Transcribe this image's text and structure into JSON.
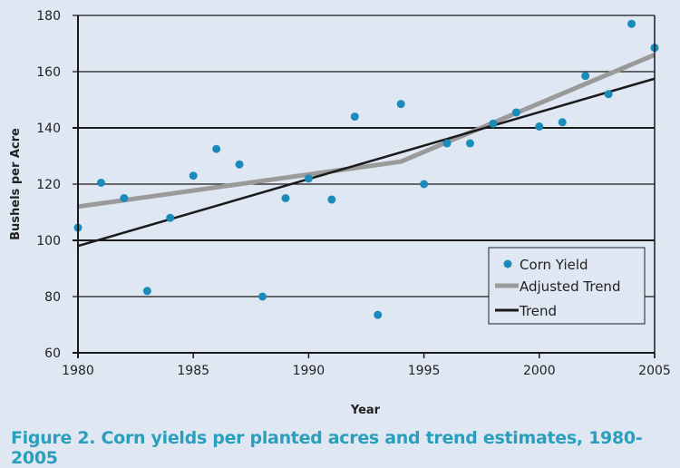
{
  "chart_data": {
    "type": "scatter",
    "title": "Figure 2. Corn yields per planted acres and trend estimates, 1980-2005",
    "xlabel": "Year",
    "ylabel": "Bushels per Acre",
    "xlim": [
      1980,
      2005
    ],
    "ylim": [
      60,
      180
    ],
    "xticks": [
      1980,
      1985,
      1990,
      1995,
      2000,
      2005
    ],
    "yticks": [
      60,
      80,
      100,
      120,
      140,
      160,
      180
    ],
    "grid": true,
    "legend_position": "bottom-right",
    "series": [
      {
        "name": "Corn Yield",
        "kind": "scatter",
        "color": "#1b8cb9",
        "x": [
          1980,
          1981,
          1982,
          1983,
          1984,
          1985,
          1986,
          1987,
          1988,
          1989,
          1990,
          1991,
          1992,
          1993,
          1994,
          1995,
          1996,
          1997,
          1998,
          1999,
          2000,
          2001,
          2002,
          2003,
          2004,
          2005
        ],
        "y": [
          104.5,
          120.5,
          115,
          82,
          108,
          123,
          132.5,
          127,
          80,
          115,
          122,
          114.5,
          144,
          73.5,
          148.5,
          120,
          134.5,
          134.5,
          141.5,
          145.5,
          140.5,
          142,
          158.5,
          152,
          177,
          168.5
        ]
      },
      {
        "name": "Adjusted Trend",
        "kind": "line",
        "color": "#9a9a9a",
        "x": [
          1980,
          1994,
          2005
        ],
        "y": [
          112,
          128,
          166
        ]
      },
      {
        "name": "Trend",
        "kind": "line",
        "color": "#1a1a1a",
        "x": [
          1980,
          2005
        ],
        "y": [
          98,
          157.5
        ]
      }
    ]
  }
}
